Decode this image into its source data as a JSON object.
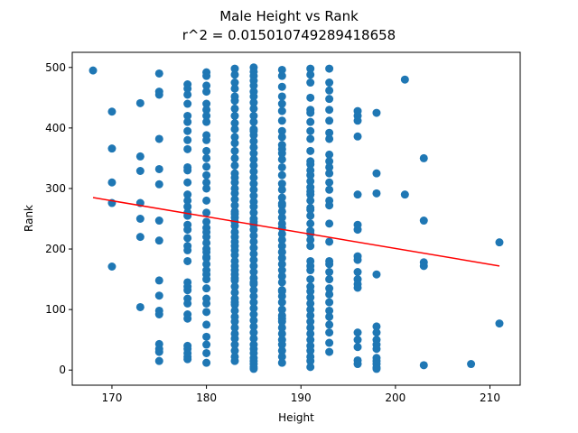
{
  "chart_data": {
    "type": "scatter",
    "title": "Male Height vs Rank",
    "subtitle": "r^2 = 0.015010749289418658",
    "xlabel": "Height",
    "ylabel": "Rank",
    "xlim": [
      165.8,
      213.2
    ],
    "ylim": [
      -25,
      525
    ],
    "xticks": [
      170,
      180,
      190,
      200,
      210
    ],
    "yticks": [
      0,
      100,
      200,
      300,
      400,
      500
    ],
    "grid": false,
    "point_color": "#1f77b4",
    "line_color": "#ff0000",
    "trend_line": {
      "x": [
        168,
        211
      ],
      "y": [
        285,
        172
      ]
    },
    "series": [
      {
        "x": [
          168,
          170,
          170,
          170,
          170,
          170,
          173,
          173,
          173,
          173,
          173,
          173,
          173,
          175,
          175,
          175,
          175,
          175,
          175,
          175,
          175,
          175,
          175,
          175,
          175,
          175,
          175,
          175,
          175,
          178,
          178,
          178,
          178,
          178,
          178,
          178,
          178,
          178,
          178,
          178,
          178,
          178,
          178,
          178,
          178,
          178,
          178,
          178,
          178,
          178,
          178,
          178,
          178,
          178,
          178,
          178,
          178,
          178,
          178,
          178,
          178,
          178,
          178,
          178,
          180,
          180,
          180,
          180,
          180,
          180,
          180,
          180,
          180,
          180,
          180,
          180,
          180,
          180,
          180,
          180,
          180,
          180,
          180,
          180,
          180,
          180,
          180,
          180,
          180,
          180,
          180,
          180,
          180,
          180,
          180,
          180,
          180,
          180,
          180,
          180,
          180,
          180,
          180,
          180,
          183,
          183,
          183,
          183,
          183,
          183,
          183,
          183,
          183,
          183,
          183,
          183,
          183,
          183,
          183,
          183,
          183,
          183,
          183,
          183,
          183,
          183,
          183,
          183,
          183,
          183,
          183,
          183,
          183,
          183,
          183,
          183,
          183,
          183,
          183,
          183,
          183,
          183,
          183,
          183,
          183,
          183,
          183,
          183,
          183,
          183,
          183,
          183,
          183,
          183,
          183,
          183,
          183,
          183,
          185,
          185,
          185,
          185,
          185,
          185,
          185,
          185,
          185,
          185,
          185,
          185,
          185,
          185,
          185,
          185,
          185,
          185,
          185,
          185,
          185,
          185,
          185,
          185,
          185,
          185,
          185,
          185,
          185,
          185,
          185,
          185,
          185,
          185,
          185,
          185,
          185,
          185,
          185,
          185,
          185,
          185,
          185,
          185,
          185,
          185,
          185,
          185,
          185,
          185,
          185,
          185,
          185,
          185,
          185,
          185,
          185,
          185,
          188,
          188,
          188,
          188,
          188,
          188,
          188,
          188,
          188,
          188,
          188,
          188,
          188,
          188,
          188,
          188,
          188,
          188,
          188,
          188,
          188,
          188,
          188,
          188,
          188,
          188,
          188,
          188,
          188,
          188,
          188,
          188,
          188,
          188,
          188,
          188,
          188,
          188,
          188,
          188,
          188,
          188,
          188,
          188,
          188,
          188,
          188,
          188,
          188,
          191,
          191,
          191,
          191,
          191,
          191,
          191,
          191,
          191,
          191,
          191,
          191,
          191,
          191,
          191,
          191,
          191,
          191,
          191,
          191,
          191,
          191,
          191,
          191,
          191,
          191,
          191,
          191,
          191,
          191,
          191,
          191,
          191,
          191,
          191,
          191,
          191,
          191,
          191,
          191,
          191,
          191,
          191,
          191,
          191,
          191,
          193,
          193,
          193,
          193,
          193,
          193,
          193,
          193,
          193,
          193,
          193,
          193,
          193,
          193,
          193,
          193,
          193,
          193,
          193,
          193,
          193,
          193,
          193,
          193,
          193,
          193,
          193,
          193,
          193,
          193,
          193,
          196,
          196,
          196,
          196,
          196,
          196,
          196,
          196,
          196,
          196,
          196,
          196,
          196,
          196,
          196,
          196,
          196,
          196,
          198,
          198,
          198,
          198,
          198,
          198,
          198,
          198,
          198,
          198,
          198,
          198,
          198,
          198,
          201,
          201,
          203,
          203,
          203,
          203,
          203,
          208,
          211,
          211
        ],
        "y": [
          495,
          427,
          366,
          310,
          276,
          171,
          441,
          353,
          329,
          276,
          250,
          220,
          104,
          490,
          460,
          455,
          382,
          332,
          307,
          247,
          214,
          148,
          123,
          98,
          92,
          43,
          35,
          30,
          15,
          472,
          465,
          455,
          440,
          420,
          410,
          395,
          380,
          365,
          335,
          330,
          310,
          290,
          280,
          270,
          260,
          255,
          240,
          232,
          218,
          205,
          198,
          180,
          145,
          138,
          132,
          118,
          92,
          85,
          40,
          35,
          22,
          18,
          28,
          110,
          492,
          486,
          470,
          460,
          440,
          430,
          420,
          410,
          388,
          380,
          362,
          350,
          336,
          322,
          300,
          280,
          260,
          235,
          228,
          220,
          210,
          200,
          195,
          187,
          175,
          165,
          158,
          150,
          135,
          118,
          110,
          96,
          75,
          55,
          42,
          28,
          12,
          310,
          245,
          185,
          498,
          488,
          475,
          465,
          452,
          445,
          432,
          420,
          408,
          398,
          385,
          375,
          362,
          350,
          338,
          325,
          310,
          300,
          292,
          282,
          272,
          262,
          252,
          245,
          238,
          228,
          220,
          212,
          205,
          198,
          190,
          180,
          172,
          165,
          158,
          148,
          138,
          128,
          118,
          108,
          98,
          88,
          80,
          70,
          60,
          52,
          42,
          32,
          22,
          15,
          318,
          258,
          152,
          112,
          500,
          493,
          486,
          478,
          470,
          460,
          452,
          442,
          432,
          420,
          410,
          398,
          388,
          378,
          368,
          358,
          348,
          338,
          328,
          318,
          308,
          298,
          288,
          278,
          270,
          260,
          250,
          240,
          232,
          222,
          212,
          202,
          192,
          182,
          172,
          162,
          152,
          142,
          132,
          122,
          112,
          102,
          92,
          82,
          72,
          62,
          52,
          42,
          35,
          28,
          20,
          15,
          10,
          5,
          2,
          395,
          245,
          145,
          496,
          486,
          468,
          452,
          440,
          428,
          412,
          395,
          385,
          372,
          358,
          348,
          335,
          322,
          308,
          298,
          285,
          272,
          262,
          252,
          242,
          235,
          225,
          215,
          205,
          195,
          185,
          175,
          165,
          155,
          145,
          132,
          122,
          112,
          100,
          90,
          80,
          70,
          60,
          50,
          42,
          32,
          22,
          12,
          365,
          275,
          195,
          130,
          85,
          498,
          488,
          475,
          450,
          430,
          410,
          395,
          382,
          362,
          340,
          330,
          322,
          312,
          302,
          290,
          280,
          268,
          255,
          242,
          230,
          225,
          215,
          180,
          172,
          165,
          150,
          138,
          130,
          120,
          110,
          100,
          90,
          80,
          70,
          60,
          50,
          40,
          32,
          22,
          15,
          5,
          425,
          345,
          295,
          265,
          205,
          498,
          475,
          462,
          448,
          430,
          412,
          392,
          382,
          356,
          345,
          335,
          325,
          310,
          298,
          280,
          272,
          242,
          212,
          180,
          175,
          162,
          150,
          135,
          125,
          112,
          98,
          88,
          75,
          62,
          45,
          30,
          428,
          420,
          412,
          386,
          290,
          240,
          232,
          188,
          182,
          162,
          150,
          142,
          136,
          62,
          50,
          38,
          16,
          10,
          425,
          325,
          292,
          158,
          72,
          62,
          50,
          42,
          35,
          20,
          15,
          10,
          4,
          2,
          480,
          290,
          350,
          247,
          178,
          172,
          8,
          10,
          211,
          77
        ]
      }
    ]
  }
}
